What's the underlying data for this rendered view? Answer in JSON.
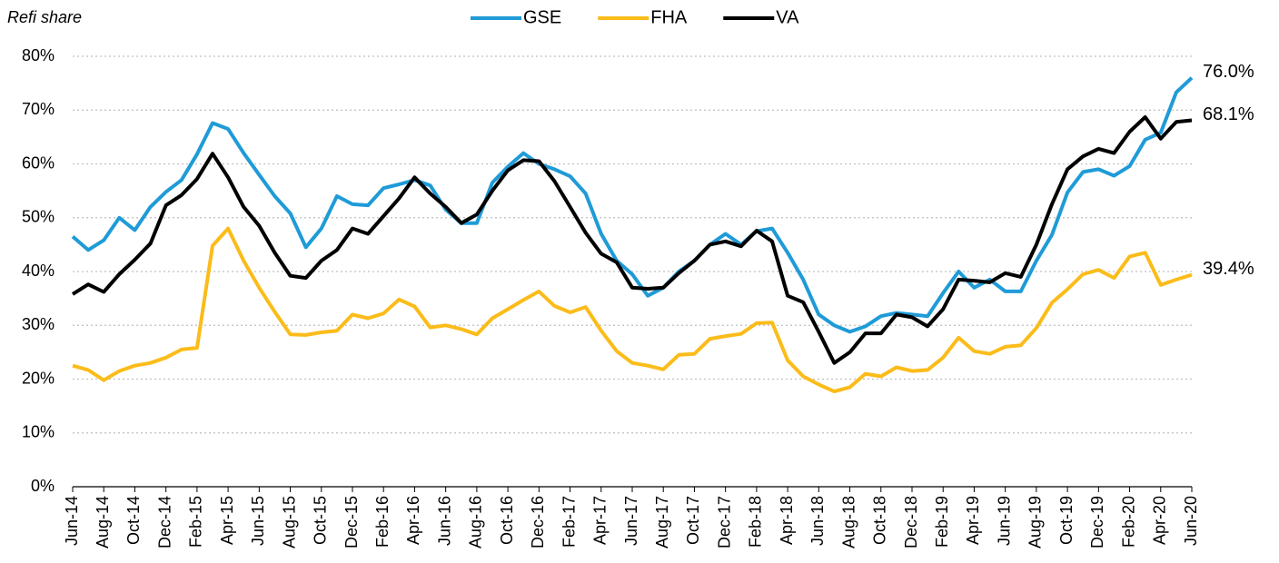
{
  "chart_data": {
    "type": "line",
    "y_label": "Refi share",
    "categories": [
      "Jun-14",
      null,
      "Aug-14",
      null,
      "Oct-14",
      null,
      "Dec-14",
      null,
      "Feb-15",
      null,
      "Apr-15",
      null,
      "Jun-15",
      null,
      "Aug-15",
      null,
      "Oct-15",
      null,
      "Dec-15",
      null,
      "Feb-16",
      null,
      "Apr-16",
      null,
      "Jun-16",
      null,
      "Aug-16",
      null,
      "Oct-16",
      null,
      "Dec-16",
      null,
      "Feb-17",
      null,
      "Apr-17",
      null,
      "Jun-17",
      null,
      "Aug-17",
      null,
      "Oct-17",
      null,
      "Dec-17",
      null,
      "Feb-18",
      null,
      "Apr-18",
      null,
      "Jun-18",
      null,
      "Aug-18",
      null,
      "Oct-18",
      null,
      "Dec-18",
      null,
      "Feb-19",
      null,
      "Apr-19",
      null,
      "Jun-19",
      null,
      "Aug-19",
      null,
      "Oct-19",
      null,
      "Dec-19",
      null,
      "Feb-20",
      null,
      "Apr-20",
      null,
      "Jun-20"
    ],
    "series": [
      {
        "name": "GSE",
        "color": "#1f9bd7",
        "end_label": "76.0%",
        "values": [
          46.5,
          44,
          45.8,
          50,
          47.7,
          52,
          54.8,
          57,
          61.8,
          67.6,
          66.5,
          62,
          58,
          54,
          50.8,
          44.5,
          48,
          54,
          52.5,
          52.3,
          55.5,
          56.2,
          57,
          56,
          51.5,
          49,
          49,
          56.5,
          59.5,
          62,
          60,
          59,
          57.7,
          54.5,
          47,
          42,
          39.5,
          35.5,
          37,
          40,
          42,
          45,
          47,
          45,
          47.5,
          48,
          43.5,
          38.5,
          32,
          30,
          28.8,
          29.8,
          31.7,
          32.3,
          32,
          31.7,
          36,
          40,
          37,
          38.5,
          36.3,
          36.3,
          42,
          46.8,
          54.7,
          58.5,
          59,
          57.8,
          59.6,
          64.5,
          65.8,
          73.3,
          76.0
        ]
      },
      {
        "name": "FHA",
        "color": "#fbbc1a",
        "end_label": "39.4%",
        "values": [
          22.5,
          21.7,
          19.8,
          21.5,
          22.5,
          23,
          24,
          25.5,
          25.8,
          44.8,
          48,
          42,
          37,
          32.5,
          28.3,
          28.2,
          28.7,
          29,
          32,
          31.3,
          32.2,
          34.8,
          33.5,
          29.6,
          30,
          29.3,
          28.3,
          31.3,
          33,
          34.7,
          36.3,
          33.6,
          32.4,
          33.4,
          29,
          25.2,
          23,
          22.5,
          21.8,
          24.5,
          24.7,
          27.5,
          28,
          28.4,
          30.4,
          30.5,
          23.5,
          20.5,
          19,
          17.7,
          18.5,
          21,
          20.5,
          22.2,
          21.5,
          21.7,
          24,
          27.7,
          25.2,
          24.7,
          26,
          26.3,
          29.5,
          34.2,
          36.7,
          39.5,
          40.3,
          38.8,
          42.8,
          43.5,
          37.5,
          38.5,
          39.4
        ]
      },
      {
        "name": "VA",
        "color": "#000000",
        "end_label": "68.1%",
        "values": [
          35.8,
          37.6,
          36.2,
          39.5,
          42.2,
          45.2,
          52.3,
          54.2,
          57.2,
          61.9,
          57.5,
          52,
          48.5,
          43.5,
          39.2,
          38.8,
          42,
          44,
          48,
          47,
          50.3,
          53.6,
          57.5,
          54.5,
          52,
          49,
          50.6,
          55,
          58.8,
          60.7,
          60.5,
          56.8,
          52,
          47.2,
          43.3,
          41.7,
          37,
          36.8,
          37,
          39.7,
          42,
          45,
          45.6,
          44.7,
          47.6,
          45.6,
          35.5,
          34.3,
          28.8,
          23,
          25,
          28.5,
          28.5,
          32,
          31.5,
          29.8,
          33,
          38.5,
          38.3,
          38,
          39.7,
          39,
          45,
          52.5,
          59,
          61.4,
          62.8,
          62,
          66,
          68.7,
          64.7,
          67.8,
          68.1
        ]
      }
    ],
    "ylim": [
      0,
      80
    ],
    "yticks": [
      {
        "value": 0,
        "label": "0%"
      },
      {
        "value": 10,
        "label": "10%"
      },
      {
        "value": 20,
        "label": "20%"
      },
      {
        "value": 30,
        "label": "30%"
      },
      {
        "value": 40,
        "label": "40%"
      },
      {
        "value": 50,
        "label": "50%"
      },
      {
        "value": 60,
        "label": "60%"
      },
      {
        "value": 70,
        "label": "70%"
      },
      {
        "value": 80,
        "label": "80%"
      }
    ],
    "grid": true,
    "legend": "top"
  }
}
